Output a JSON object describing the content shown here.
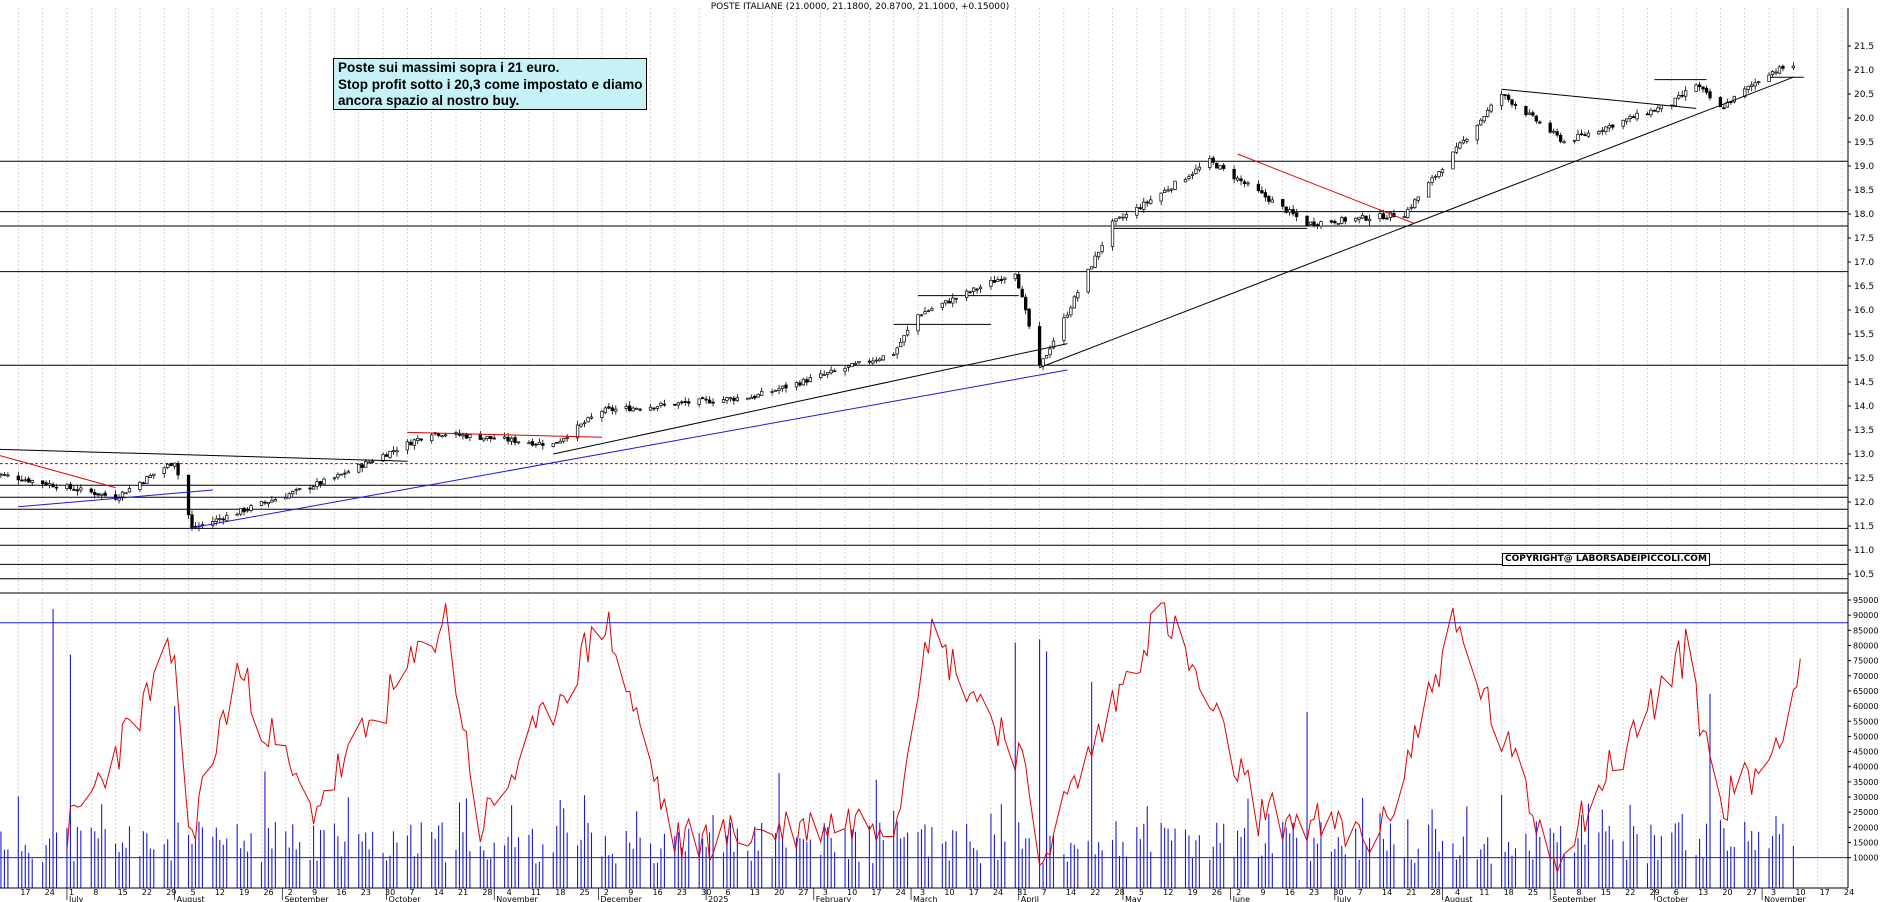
{
  "title": "POSTE ITALIANE (21.0000, 21.1800, 20.8700, 21.1000, +0.15000)",
  "note_lines": [
    "Poste sui massimi sopra i 21 euro.",
    "Stop profit sotto i 20,3 come impostato e diamo",
    "ancora spazio al nostro buy."
  ],
  "copyright": "COPYRIGHT@ LABORSADEIPICCOLI.COM",
  "colors": {
    "price": "#000000",
    "oscillator": "#e00000",
    "volume": "#1a1ad6",
    "support_trend": "#1a1ad6",
    "resistance_trend": "#e00000",
    "note_bg": "#c6f2f7",
    "grid": "#bdbdbd"
  },
  "chart_data": [
    {
      "type": "candlestick",
      "title": "POSTE ITALIANE (21.0000, 21.1800, 20.8700, 21.1000, +0.15000)",
      "price_axis": {
        "ticks": [
          "10.5",
          "11.0",
          "11.5",
          "12.0",
          "12.5",
          "13.0",
          "13.5",
          "14.0",
          "14.5",
          "15.0",
          "15.5",
          "16.0",
          "16.5",
          "17.0",
          "17.5",
          "18.0",
          "18.5",
          "19.0",
          "19.5",
          "20.0",
          "20.5",
          "21.0",
          "21.5"
        ],
        "ylim": [
          10.5,
          21.5
        ],
        "position": "right"
      },
      "date_axis": {
        "day_labels": [
          "10",
          "17",
          "24",
          "1",
          "8",
          "15",
          "22",
          "29",
          "5",
          "12",
          "19",
          "26",
          "2",
          "9",
          "16",
          "23",
          "30",
          "7",
          "14",
          "21",
          "28",
          "4",
          "11",
          "18",
          "25",
          "2",
          "9",
          "16",
          "23",
          "30",
          "6",
          "13",
          "20",
          "27",
          "3",
          "10",
          "17",
          "24",
          "3",
          "10",
          "17",
          "24",
          "31",
          "7",
          "14",
          "22",
          "28",
          "5",
          "12",
          "19",
          "26",
          "2",
          "9",
          "16",
          "23",
          "30",
          "7",
          "14",
          "21",
          "28",
          "4",
          "11",
          "18",
          "25",
          "1",
          "8",
          "15",
          "22",
          "29",
          "6",
          "13",
          "20",
          "27",
          "3",
          "10",
          "17",
          "24"
        ],
        "month_labels": [
          "July",
          "August",
          "September",
          "October",
          "November",
          "December",
          "2025",
          "February",
          "March",
          "April",
          "May",
          "June",
          "July",
          "August",
          "September",
          "October",
          "November"
        ],
        "start": "2024-06-10",
        "end": "2025-11-24"
      },
      "key_points": [
        {
          "date": "2024-06-10",
          "close": 12.6
        },
        {
          "date": "2024-07-15",
          "close": 12.1
        },
        {
          "date": "2024-08-01",
          "close": 12.85
        },
        {
          "date": "2024-08-06",
          "close": 11.45
        },
        {
          "date": "2024-09-16",
          "close": 12.5
        },
        {
          "date": "2024-10-14",
          "close": 13.45
        },
        {
          "date": "2024-11-18",
          "close": 13.2
        },
        {
          "date": "2024-12-02",
          "close": 13.9
        },
        {
          "date": "2025-01-15",
          "close": 14.2
        },
        {
          "date": "2025-02-24",
          "close": 15.1
        },
        {
          "date": "2025-03-03",
          "close": 15.9
        },
        {
          "date": "2025-03-31",
          "close": 16.8
        },
        {
          "date": "2025-04-07",
          "close": 14.8
        },
        {
          "date": "2025-04-28",
          "close": 17.8
        },
        {
          "date": "2025-05-07",
          "close": 18.2
        },
        {
          "date": "2025-05-26",
          "close": 19.1
        },
        {
          "date": "2025-06-23",
          "close": 17.8
        },
        {
          "date": "2025-07-21",
          "close": 18.0
        },
        {
          "date": "2025-08-18",
          "close": 20.5
        },
        {
          "date": "2025-09-05",
          "close": 19.5
        },
        {
          "date": "2025-10-06",
          "close": 20.3
        },
        {
          "date": "2025-10-13",
          "close": 20.7
        },
        {
          "date": "2025-10-20",
          "close": 20.2
        },
        {
          "date": "2025-11-03",
          "close": 20.95
        },
        {
          "date": "2025-11-10",
          "close": 21.1
        }
      ],
      "horizontal_levels": [
        10.4,
        10.7,
        11.1,
        11.45,
        11.85,
        12.1,
        12.35,
        14.85,
        16.8,
        17.75,
        18.05,
        19.1
      ],
      "dashed_levels": [
        12.8
      ],
      "short_levels": [
        {
          "from": "2025-02-24",
          "to": "2025-03-24",
          "value": 15.7
        },
        {
          "from": "2025-03-03",
          "to": "2025-04-01",
          "value": 16.3
        },
        {
          "from": "2025-04-28",
          "to": "2025-06-23",
          "value": 17.7
        },
        {
          "from": "2025-10-01",
          "to": "2025-10-16",
          "value": 20.8
        },
        {
          "from": "2025-11-03",
          "to": "2025-11-13",
          "value": 20.85
        }
      ],
      "trendlines": [
        {
          "color": "support_trend",
          "from": [
            "2024-06-17",
            11.9
          ],
          "to": [
            "2024-08-12",
            12.25
          ]
        },
        {
          "color": "support_trend",
          "from": [
            "2024-08-05",
            11.45
          ],
          "to": [
            "2025-04-15",
            14.75
          ]
        },
        {
          "color": "price",
          "from": [
            "2024-06-10",
            13.1
          ],
          "to": [
            "2024-10-07",
            12.85
          ]
        },
        {
          "color": "price",
          "from": [
            "2024-11-18",
            13.0
          ],
          "to": [
            "2025-04-15",
            15.3
          ]
        },
        {
          "color": "price",
          "from": [
            "2025-04-07",
            14.8
          ],
          "to": [
            "2025-11-10",
            20.85
          ]
        },
        {
          "color": "price",
          "from": [
            "2025-08-18",
            20.6
          ],
          "to": [
            "2025-10-13",
            20.2
          ]
        },
        {
          "color": "resistance_trend",
          "from": [
            "2024-06-10",
            13.0
          ],
          "to": [
            "2024-07-15",
            12.3
          ]
        },
        {
          "color": "resistance_trend",
          "from": [
            "2024-10-07",
            13.45
          ],
          "to": [
            "2024-12-02",
            13.35
          ]
        },
        {
          "color": "resistance_trend",
          "from": [
            "2025-06-03",
            19.25
          ],
          "to": [
            "2025-07-24",
            17.8
          ]
        }
      ]
    },
    {
      "type": "bar+line",
      "volume_axis": {
        "ticks": [
          "10000",
          "15000",
          "20000",
          "25000",
          "30000",
          "35000",
          "40000",
          "45000",
          "50000",
          "55000",
          "60000",
          "65000",
          "70000",
          "75000",
          "80000",
          "85000",
          "90000",
          "95000"
        ],
        "ylim": [
          0,
          97000
        ]
      },
      "oscillator_reference_levels": [
        87500,
        10000
      ],
      "oscillator_key_points": [
        {
          "date": "2024-07-01",
          "value": 18000
        },
        {
          "date": "2024-07-24",
          "value": 62000
        },
        {
          "date": "2024-08-01",
          "value": 79000
        },
        {
          "date": "2024-08-05",
          "value": 15000
        },
        {
          "date": "2024-08-19",
          "value": 72000
        },
        {
          "date": "2024-09-09",
          "value": 25000
        },
        {
          "date": "2024-10-18",
          "value": 89000
        },
        {
          "date": "2024-10-28",
          "value": 20000
        },
        {
          "date": "2024-12-03",
          "value": 89000
        },
        {
          "date": "2024-12-23",
          "value": 15000
        },
        {
          "date": "2025-02-25",
          "value": 24000
        },
        {
          "date": "2025-03-05",
          "value": 86000
        },
        {
          "date": "2025-04-01",
          "value": 45000
        },
        {
          "date": "2025-04-07",
          "value": 10000
        },
        {
          "date": "2025-05-12",
          "value": 93000
        },
        {
          "date": "2025-06-09",
          "value": 25000
        },
        {
          "date": "2025-07-14",
          "value": 16000
        },
        {
          "date": "2025-08-04",
          "value": 87000
        },
        {
          "date": "2025-09-02",
          "value": 10000
        },
        {
          "date": "2025-10-10",
          "value": 78000
        },
        {
          "date": "2025-10-20",
          "value": 28000
        },
        {
          "date": "2025-11-03",
          "value": 42000
        },
        {
          "date": "2025-11-12",
          "value": 74000
        }
      ],
      "volume_key_points": [
        {
          "date": "2024-06-27",
          "value": 92000
        },
        {
          "date": "2024-07-02",
          "value": 77000
        },
        {
          "date": "2024-08-01",
          "value": 60000
        },
        {
          "date": "2025-03-31",
          "value": 81000
        },
        {
          "date": "2025-04-07",
          "value": 82000
        },
        {
          "date": "2025-04-09",
          "value": 78000
        },
        {
          "date": "2025-04-22",
          "value": 68000
        },
        {
          "date": "2025-06-23",
          "value": 58000
        },
        {
          "date": "2025-10-17",
          "value": 64000
        }
      ]
    }
  ]
}
